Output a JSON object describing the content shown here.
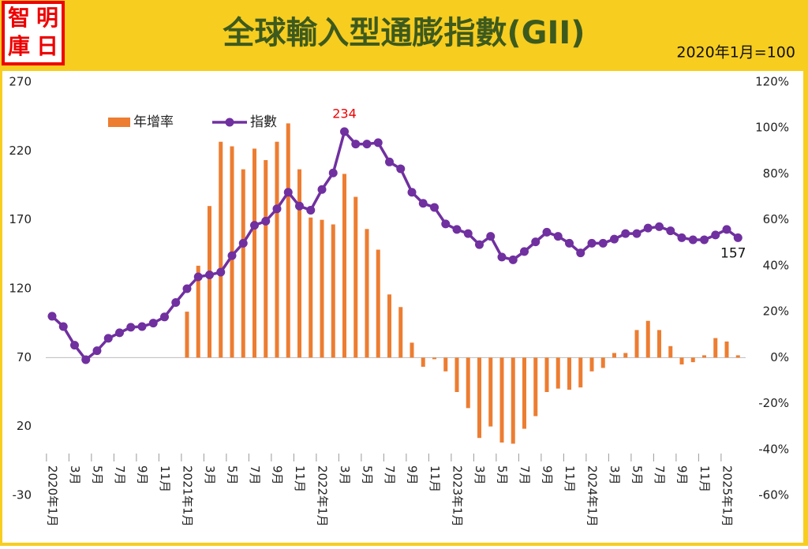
{
  "logo": [
    "智",
    "明",
    "庫",
    "日"
  ],
  "chart_data": {
    "type": "combo",
    "title": "全球輸入型通膨指數(GII)",
    "subtitle": "2020年1月=100",
    "categories": [
      "2020年1月",
      null,
      "3月",
      null,
      "5月",
      null,
      "7月",
      null,
      "9月",
      null,
      "11月",
      null,
      "2021年1月",
      null,
      "3月",
      null,
      "5月",
      null,
      "7月",
      null,
      "9月",
      null,
      "11月",
      null,
      "2022年1月",
      null,
      "3月",
      null,
      "5月",
      null,
      "7月",
      null,
      "9月",
      null,
      "11月",
      null,
      "2023年1月",
      null,
      "3月",
      null,
      "5月",
      null,
      "7月",
      null,
      "9月",
      null,
      "11月",
      null,
      "2024年1月",
      null,
      "3月",
      null,
      "5月",
      null,
      "7月",
      null,
      "9月",
      null,
      "11月",
      null,
      "2025年1月",
      null
    ],
    "series": [
      {
        "name": "年增率",
        "type": "bar",
        "axis": "y2",
        "color": "#ed7d31",
        "values": [
          null,
          null,
          null,
          null,
          null,
          null,
          null,
          null,
          null,
          null,
          null,
          null,
          20,
          40,
          66,
          94,
          92,
          82,
          91,
          86,
          94,
          102,
          82,
          61,
          60,
          58,
          80,
          70,
          56,
          47,
          27.5,
          22,
          6.5,
          -4,
          -0.7,
          -6,
          -15,
          -22,
          -35,
          -30,
          -37,
          -37.5,
          -31,
          -25.5,
          -15,
          -13.5,
          -14,
          -13,
          -6,
          -4.5,
          2,
          2,
          12,
          16,
          12,
          5,
          -3,
          -2,
          1,
          8.5,
          7,
          1
        ]
      },
      {
        "name": "指數",
        "type": "line",
        "color": "#7030a0",
        "values": [
          100,
          92.5,
          79,
          68.5,
          75,
          84,
          88,
          92,
          92.5,
          95,
          99.5,
          110,
          120,
          128.6,
          130,
          132,
          144,
          153,
          166,
          169,
          178,
          190,
          180,
          177,
          192,
          204,
          234,
          225,
          225,
          226,
          212,
          207,
          190,
          182,
          179,
          167,
          163,
          160,
          152,
          158,
          143,
          141,
          147,
          154,
          161,
          158,
          153,
          146,
          153,
          153,
          156,
          160,
          160,
          164,
          165,
          162,
          157,
          155.5,
          155.5,
          159,
          163,
          157
        ]
      }
    ],
    "ylim": [
      -30,
      270
    ],
    "yticks": [
      -30,
      20,
      70,
      120,
      170,
      220,
      270
    ],
    "y2lim": [
      -60,
      120
    ],
    "y2ticks": [
      {
        "value": -60,
        "label": "-60%"
      },
      {
        "value": -40,
        "label": "-40%"
      },
      {
        "value": -20,
        "label": "-20%"
      },
      {
        "value": 0,
        "label": "0%"
      },
      {
        "value": 20,
        "label": "20%"
      },
      {
        "value": 40,
        "label": "40%"
      },
      {
        "value": 60,
        "label": "60%"
      },
      {
        "value": 80,
        "label": "80%"
      },
      {
        "value": 100,
        "label": "100%"
      },
      {
        "value": 120,
        "label": "120%"
      }
    ],
    "grid": false
  }
}
